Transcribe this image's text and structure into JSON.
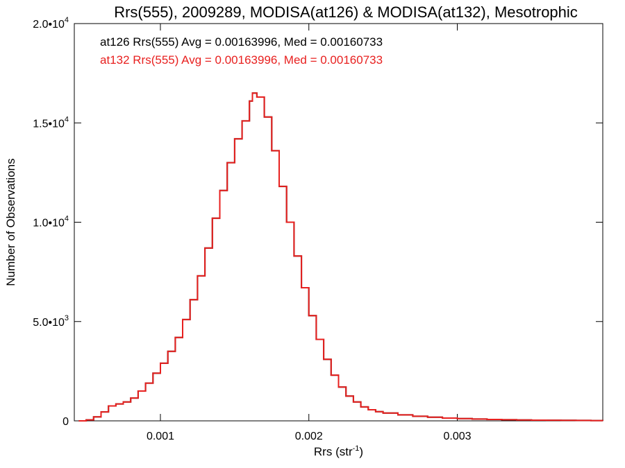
{
  "chart_data": {
    "type": "line",
    "title": "Rrs(555), 2009289, MODISA(at126) & MODISA(at132), Mesotrophic",
    "xlabel": {
      "base": "Rrs (str",
      "sup": "-1",
      "tail": ")"
    },
    "ylabel": "Number of Observations",
    "xlim": [
      0.00042,
      0.00398
    ],
    "ylim": [
      0,
      20000
    ],
    "x_ticks": [
      {
        "value": 0.001,
        "label": "0.001"
      },
      {
        "value": 0.002,
        "label": "0.002"
      },
      {
        "value": 0.003,
        "label": "0.003"
      }
    ],
    "y_ticks": [
      {
        "value": 0,
        "mant": "0",
        "exp": ""
      },
      {
        "value": 5000,
        "mant": "5.0•10",
        "exp": "3"
      },
      {
        "value": 10000,
        "mant": "1.0•10",
        "exp": "4"
      },
      {
        "value": 15000,
        "mant": "1.5•10",
        "exp": "4"
      },
      {
        "value": 20000,
        "mant": "2.0•10",
        "exp": "4"
      }
    ],
    "annotations": [
      {
        "text": "at126 Rrs(555) Avg = 0.00163996, Med = 0.00160733",
        "color": "#000000"
      },
      {
        "text": "at132 Rrs(555) Avg = 0.00163996, Med = 0.00160733",
        "color": "#e8201f"
      }
    ],
    "series": [
      {
        "name": "at126",
        "color": "#000000",
        "x": [
          0.00045,
          0.0005,
          0.00055,
          0.0006,
          0.00065,
          0.0007,
          0.00075,
          0.0008,
          0.00085,
          0.0009,
          0.00095,
          0.001,
          0.00105,
          0.0011,
          0.00115,
          0.0012,
          0.00125,
          0.0013,
          0.00135,
          0.0014,
          0.00145,
          0.0015,
          0.00155,
          0.0016,
          0.00162,
          0.00165,
          0.0017,
          0.00175,
          0.0018,
          0.00185,
          0.0019,
          0.00195,
          0.002,
          0.00205,
          0.0021,
          0.00215,
          0.0022,
          0.00225,
          0.0023,
          0.00235,
          0.0024,
          0.00245,
          0.0025,
          0.0026,
          0.0027,
          0.0028,
          0.0029,
          0.003,
          0.0031,
          0.0032,
          0.0033,
          0.0034,
          0.0035,
          0.0036,
          0.0037,
          0.0038,
          0.0039,
          0.00398
        ],
        "y": [
          0,
          50,
          200,
          450,
          750,
          850,
          950,
          1150,
          1500,
          1900,
          2400,
          2900,
          3500,
          4200,
          5100,
          6100,
          7300,
          8700,
          10200,
          11600,
          13000,
          14200,
          15100,
          16100,
          16500,
          16300,
          15300,
          13600,
          11800,
          10000,
          8300,
          6700,
          5300,
          4100,
          3100,
          2300,
          1700,
          1250,
          950,
          700,
          560,
          460,
          390,
          300,
          230,
          180,
          140,
          110,
          90,
          70,
          55,
          45,
          35,
          30,
          25,
          20,
          15,
          10
        ]
      },
      {
        "name": "at132",
        "color": "#e8201f",
        "x": [
          0.00045,
          0.0005,
          0.00055,
          0.0006,
          0.00065,
          0.0007,
          0.00075,
          0.0008,
          0.00085,
          0.0009,
          0.00095,
          0.001,
          0.00105,
          0.0011,
          0.00115,
          0.0012,
          0.00125,
          0.0013,
          0.00135,
          0.0014,
          0.00145,
          0.0015,
          0.00155,
          0.0016,
          0.00162,
          0.00165,
          0.0017,
          0.00175,
          0.0018,
          0.00185,
          0.0019,
          0.00195,
          0.002,
          0.00205,
          0.0021,
          0.00215,
          0.0022,
          0.00225,
          0.0023,
          0.00235,
          0.0024,
          0.00245,
          0.0025,
          0.0026,
          0.0027,
          0.0028,
          0.0029,
          0.003,
          0.0031,
          0.0032,
          0.0033,
          0.0034,
          0.0035,
          0.0036,
          0.0037,
          0.0038,
          0.0039,
          0.00398
        ],
        "y": [
          0,
          50,
          200,
          450,
          750,
          850,
          950,
          1150,
          1500,
          1900,
          2400,
          2900,
          3500,
          4200,
          5100,
          6100,
          7300,
          8700,
          10200,
          11600,
          13000,
          14200,
          15100,
          16100,
          16500,
          16300,
          15300,
          13600,
          11800,
          10000,
          8300,
          6700,
          5300,
          4100,
          3100,
          2300,
          1700,
          1250,
          950,
          700,
          560,
          460,
          390,
          300,
          230,
          180,
          140,
          110,
          90,
          70,
          55,
          45,
          35,
          30,
          25,
          20,
          15,
          10
        ]
      }
    ]
  }
}
